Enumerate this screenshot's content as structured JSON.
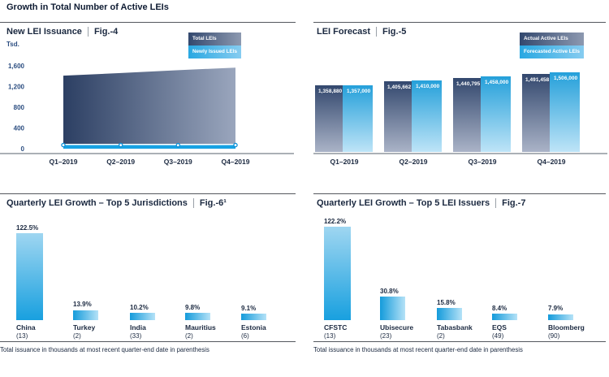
{
  "page": {
    "header": "Growth in Total Number of Active LEIs"
  },
  "colors": {
    "accent_cyan": "#29abe2",
    "cyan_dark": "#149bdb",
    "cyan_light": "#b5e2f7",
    "navy_bar_top": "#33486e",
    "navy_bar_bottom": "#aab3c7",
    "area_left": "#2c3f63",
    "area_right": "#9aa6bd",
    "band_cyan": "#17a2e3",
    "marker_stroke": "#0d8fd6",
    "text_navy": "#1b2940",
    "tick_blue": "#2b4d80"
  },
  "chart_data": [
    {
      "id": "fig4",
      "type": "area",
      "title": "New LEI Issuance",
      "fig_label": "Fig.-4",
      "unit_label": "Tsd.",
      "legend": [
        "Total LEIs",
        "Newly Issued LEIs"
      ],
      "legend_position": "top-right",
      "x": [
        "Q1–2019",
        "Q2–2019",
        "Q3–2019",
        "Q4–2019"
      ],
      "yticks": [
        1600,
        1200,
        800,
        400,
        0
      ],
      "ytick_labels": [
        "1,600",
        "1,200",
        "800",
        "400",
        "0"
      ],
      "ylim": [
        0,
        1600
      ],
      "grid": false,
      "series": [
        {
          "name": "Total LEIs",
          "values": [
            1410,
            1460,
            1515,
            1565
          ]
        },
        {
          "name": "Newly Issued LEIs",
          "values": [
            70,
            70,
            68,
            70
          ]
        }
      ]
    },
    {
      "id": "fig5",
      "type": "bar",
      "title": "LEI Forecast",
      "fig_label": "Fig.-5",
      "legend": [
        "Actual Active LEIs",
        "Forecasted Active LEIs"
      ],
      "legend_position": "top-right",
      "x": [
        "Q1–2019",
        "Q2–2019",
        "Q3–2019",
        "Q4–2019"
      ],
      "ylim": [
        600000,
        1506000
      ],
      "grid": false,
      "series": [
        {
          "name": "Actual Active LEIs",
          "values": [
            1358880,
            1405662,
            1440795,
            1491458
          ],
          "value_labels": [
            "1,358,880",
            "1,405,662",
            "1,440,795",
            "1,491,458"
          ]
        },
        {
          "name": "Forecasted Active LEIs",
          "values": [
            1357000,
            1410000,
            1458000,
            1506000
          ],
          "value_labels": [
            "1,357,000",
            "1,410,000",
            "1,458,000",
            "1,506,000"
          ]
        }
      ]
    },
    {
      "id": "fig6",
      "type": "bar",
      "title": "Quarterly LEI Growth – Top 5 Jurisdictions",
      "fig_label": "Fig.-6¹",
      "categories": [
        "China",
        "Turkey",
        "India",
        "Mauritius",
        "Estonia"
      ],
      "sub_labels": [
        "(13)",
        "(2)",
        "(33)",
        "(2)",
        "(6)"
      ],
      "values": [
        122.5,
        13.9,
        10.2,
        9.8,
        9.1
      ],
      "value_labels": [
        "122.5%",
        "13.9%",
        "10.2%",
        "9.8%",
        "9.1%"
      ],
      "footnote": "Total issuance in thousands at most recent quarter-end date in parenthesis"
    },
    {
      "id": "fig7",
      "type": "bar",
      "title": "Quarterly LEI Growth – Top 5 LEI Issuers",
      "fig_label": "Fig.-7",
      "categories": [
        "CFSTC",
        "Ubisecure",
        "Tabasbank",
        "EQS",
        "Bloomberg"
      ],
      "sub_labels": [
        "(13)",
        "(23)",
        "(2)",
        "(49)",
        "(90)"
      ],
      "values": [
        122.2,
        30.8,
        15.8,
        8.4,
        7.9
      ],
      "value_labels": [
        "122.2%",
        "30.8%",
        "15.8%",
        "8.4%",
        "7.9%"
      ],
      "footnote": "Total issuance in thousands at most recent quarter-end date in parenthesis"
    }
  ]
}
